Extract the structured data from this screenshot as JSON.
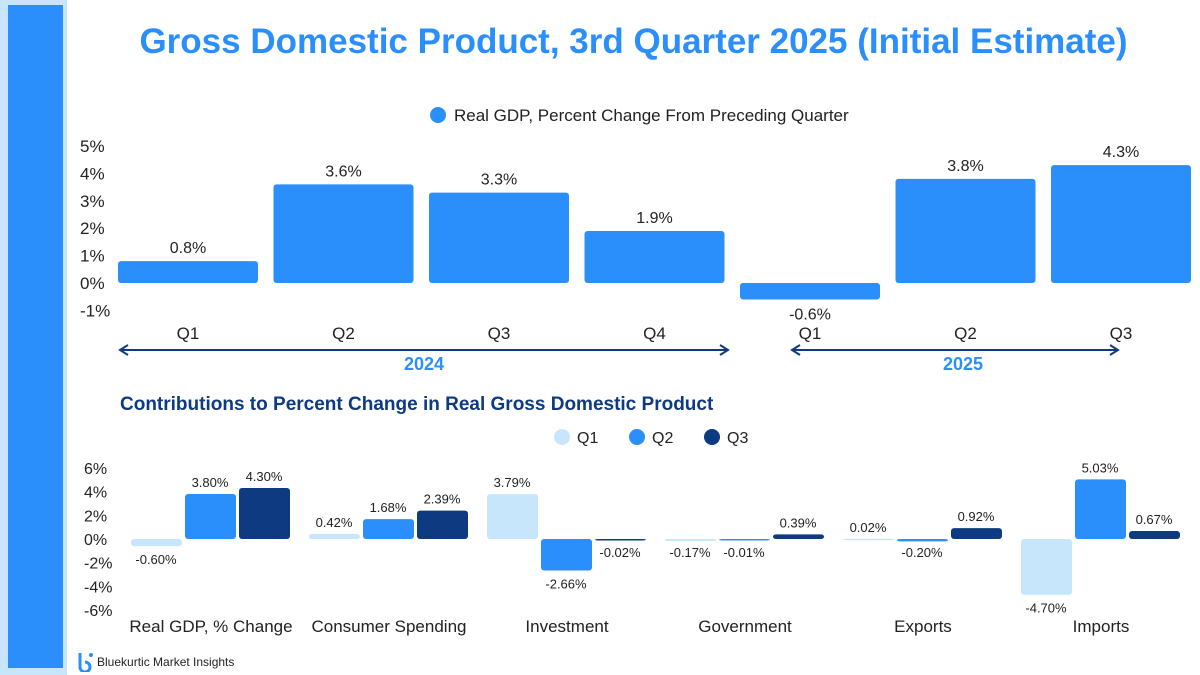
{
  "title": "Gross Domestic Product, 3rd Quarter 2025 (Initial Estimate)",
  "brand": "Bluekurtic Market Insights",
  "colors": {
    "accent": "#2b8ffb",
    "dark": "#0d3a80",
    "light": "#c7e6fb"
  },
  "chart_data": [
    {
      "type": "bar",
      "legend": "Real GDP, Percent Change From Preceding Quarter",
      "legend_position": "top",
      "categories": [
        "Q1",
        "Q2",
        "Q3",
        "Q4",
        "Q1",
        "Q2",
        "Q3"
      ],
      "groups": [
        {
          "label": "2024",
          "count": 4
        },
        {
          "label": "2025",
          "count": 3
        }
      ],
      "values": [
        0.8,
        3.6,
        3.3,
        1.9,
        -0.6,
        3.8,
        4.3
      ],
      "data_labels": [
        "0.8%",
        "3.6%",
        "3.3%",
        "1.9%",
        "-0.6%",
        "3.8%",
        "4.3%"
      ],
      "yticks": [
        "5%",
        "4%",
        "3%",
        "2%",
        "1%",
        "0%",
        "-1%"
      ],
      "ylim": [
        -1,
        5
      ],
      "grid": false
    },
    {
      "type": "bar",
      "title": "Contributions to Percent Change in Real Gross Domestic Product",
      "legend_position": "top-right",
      "categories": [
        "Real GDP, % Change",
        "Consumer Spending",
        "Investment",
        "Government",
        "Exports",
        "Imports"
      ],
      "series": [
        {
          "name": "Q1",
          "color": "#c7e6fb",
          "values": [
            -0.6,
            0.42,
            3.79,
            -0.17,
            0.02,
            -4.7
          ],
          "labels": [
            "-0.60%",
            "0.42%",
            "3.79%",
            "-0.17%",
            "0.02%",
            "-4.70%"
          ]
        },
        {
          "name": "Q2",
          "color": "#2b8ffb",
          "values": [
            3.8,
            1.68,
            -2.66,
            -0.01,
            -0.2,
            5.03
          ],
          "labels": [
            "3.80%",
            "1.68%",
            "-2.66%",
            "-0.01%",
            "-0.20%",
            "5.03%"
          ]
        },
        {
          "name": "Q3",
          "color": "#0d3a80",
          "values": [
            4.3,
            2.39,
            -0.02,
            0.39,
            0.92,
            0.67
          ],
          "labels": [
            "4.30%",
            "2.39%",
            "-0.02%",
            "0.39%",
            "0.92%",
            "0.67%"
          ]
        }
      ],
      "yticks": [
        "6%",
        "4%",
        "2%",
        "0%",
        "-2%",
        "-4%",
        "-6%"
      ],
      "ylim": [
        -6,
        6
      ],
      "grid": false
    }
  ]
}
